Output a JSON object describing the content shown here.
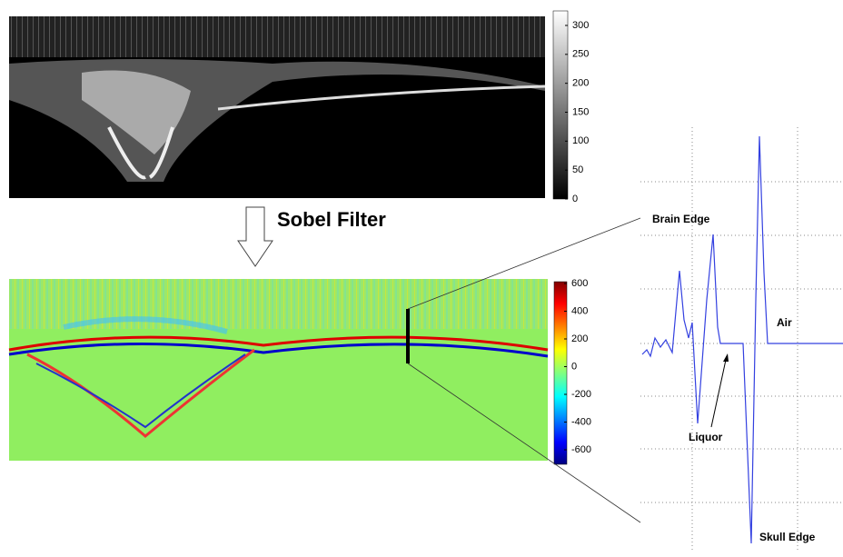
{
  "process_label": "Sobel Filter",
  "colorbars": [
    {
      "ticks": [
        300,
        250,
        200,
        150,
        100,
        50,
        0
      ]
    },
    {
      "ticks": [
        600,
        400,
        200,
        0,
        -200,
        -400,
        -600
      ]
    }
  ],
  "profile_labels": {
    "brain_edge": "Brain Edge",
    "air": "Air",
    "liquor": "Liquor",
    "skull_edge": "Skull Edge"
  }
}
